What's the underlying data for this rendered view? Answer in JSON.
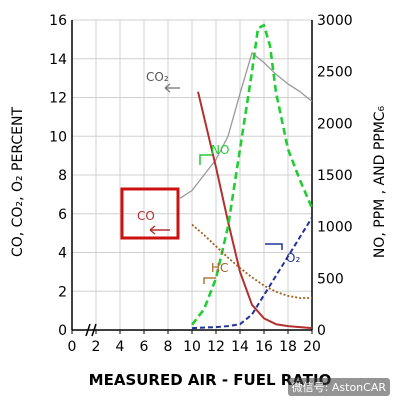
{
  "chart_data": {
    "type": "line",
    "xlabel": "MEASURED AIR - FUEL RATIO",
    "ylabel_left": "CO, CO₂, O₂ PERCENT",
    "ylabel_right": "NO, PPM , AND PPMC₆",
    "xlim": [
      0,
      20
    ],
    "ylim_left": [
      0,
      16
    ],
    "ylim_right": [
      0,
      3000
    ],
    "x_ticks": [
      "0",
      "2",
      "4",
      "6",
      "8",
      "10",
      "12",
      "14",
      "16",
      "18",
      "20"
    ],
    "y_left_ticks": [
      "0",
      "2",
      "4",
      "6",
      "8",
      "10",
      "12",
      "14",
      "16"
    ],
    "y_right_ticks": [
      "0",
      "500",
      "1000",
      "1500",
      "2000",
      "2500",
      "3000"
    ],
    "grid": true,
    "series": [
      {
        "name": "CO₂",
        "color": "#999999",
        "axis": "left",
        "points": [
          [
            9,
            6.8
          ],
          [
            10,
            7.2
          ],
          [
            11,
            8.0
          ],
          [
            12,
            8.8
          ],
          [
            13,
            10.0
          ],
          [
            14,
            12.2
          ],
          [
            15,
            14.3
          ],
          [
            16,
            13.8
          ],
          [
            17,
            13.2
          ],
          [
            18,
            12.7
          ],
          [
            19,
            12.3
          ],
          [
            20,
            11.8
          ]
        ]
      },
      {
        "name": "CO",
        "color": "#b33030",
        "axis": "left",
        "points": [
          [
            10.5,
            12.3
          ],
          [
            11,
            11.0
          ],
          [
            12,
            8.4
          ],
          [
            13,
            5.6
          ],
          [
            14,
            3.0
          ],
          [
            15,
            1.3
          ],
          [
            16,
            0.6
          ],
          [
            17,
            0.3
          ],
          [
            18,
            0.2
          ],
          [
            19,
            0.15
          ],
          [
            20,
            0.1
          ]
        ]
      },
      {
        "name": "NO",
        "color": "#22cc33",
        "axis": "right",
        "points": [
          [
            10,
            50
          ],
          [
            11,
            200
          ],
          [
            12,
            500
          ],
          [
            13,
            1000
          ],
          [
            14,
            1750
          ],
          [
            15,
            2500
          ],
          [
            15.5,
            2920
          ],
          [
            16,
            2950
          ],
          [
            16.5,
            2750
          ],
          [
            17,
            2300
          ],
          [
            18,
            1750
          ],
          [
            19,
            1450
          ],
          [
            20,
            1180
          ]
        ]
      },
      {
        "name": "HC",
        "color": "#a06020",
        "axis": "right",
        "points": [
          [
            10,
            1020
          ],
          [
            11,
            920
          ],
          [
            12,
            810
          ],
          [
            13,
            700
          ],
          [
            14,
            600
          ],
          [
            15,
            510
          ],
          [
            16,
            430
          ],
          [
            17,
            370
          ],
          [
            18,
            330
          ],
          [
            19,
            310
          ],
          [
            20,
            310
          ]
        ]
      },
      {
        "name": "O₂",
        "color": "#223399",
        "axis": "left",
        "points": [
          [
            10,
            0.1
          ],
          [
            12,
            0.15
          ],
          [
            13,
            0.2
          ],
          [
            14,
            0.3
          ],
          [
            15,
            0.8
          ],
          [
            16,
            1.8
          ],
          [
            17,
            2.8
          ],
          [
            18,
            3.8
          ],
          [
            19,
            4.8
          ],
          [
            20,
            5.8
          ]
        ]
      }
    ],
    "annotations": {
      "co2": "CO₂",
      "no": "NO",
      "co": "CO",
      "hc": "HC",
      "o2": "O₂"
    }
  },
  "colors": {
    "co_box": "#cc1111",
    "axis": "#000000",
    "grid": "#d0d0d0"
  },
  "watermark": "微信号: AstonCAR"
}
